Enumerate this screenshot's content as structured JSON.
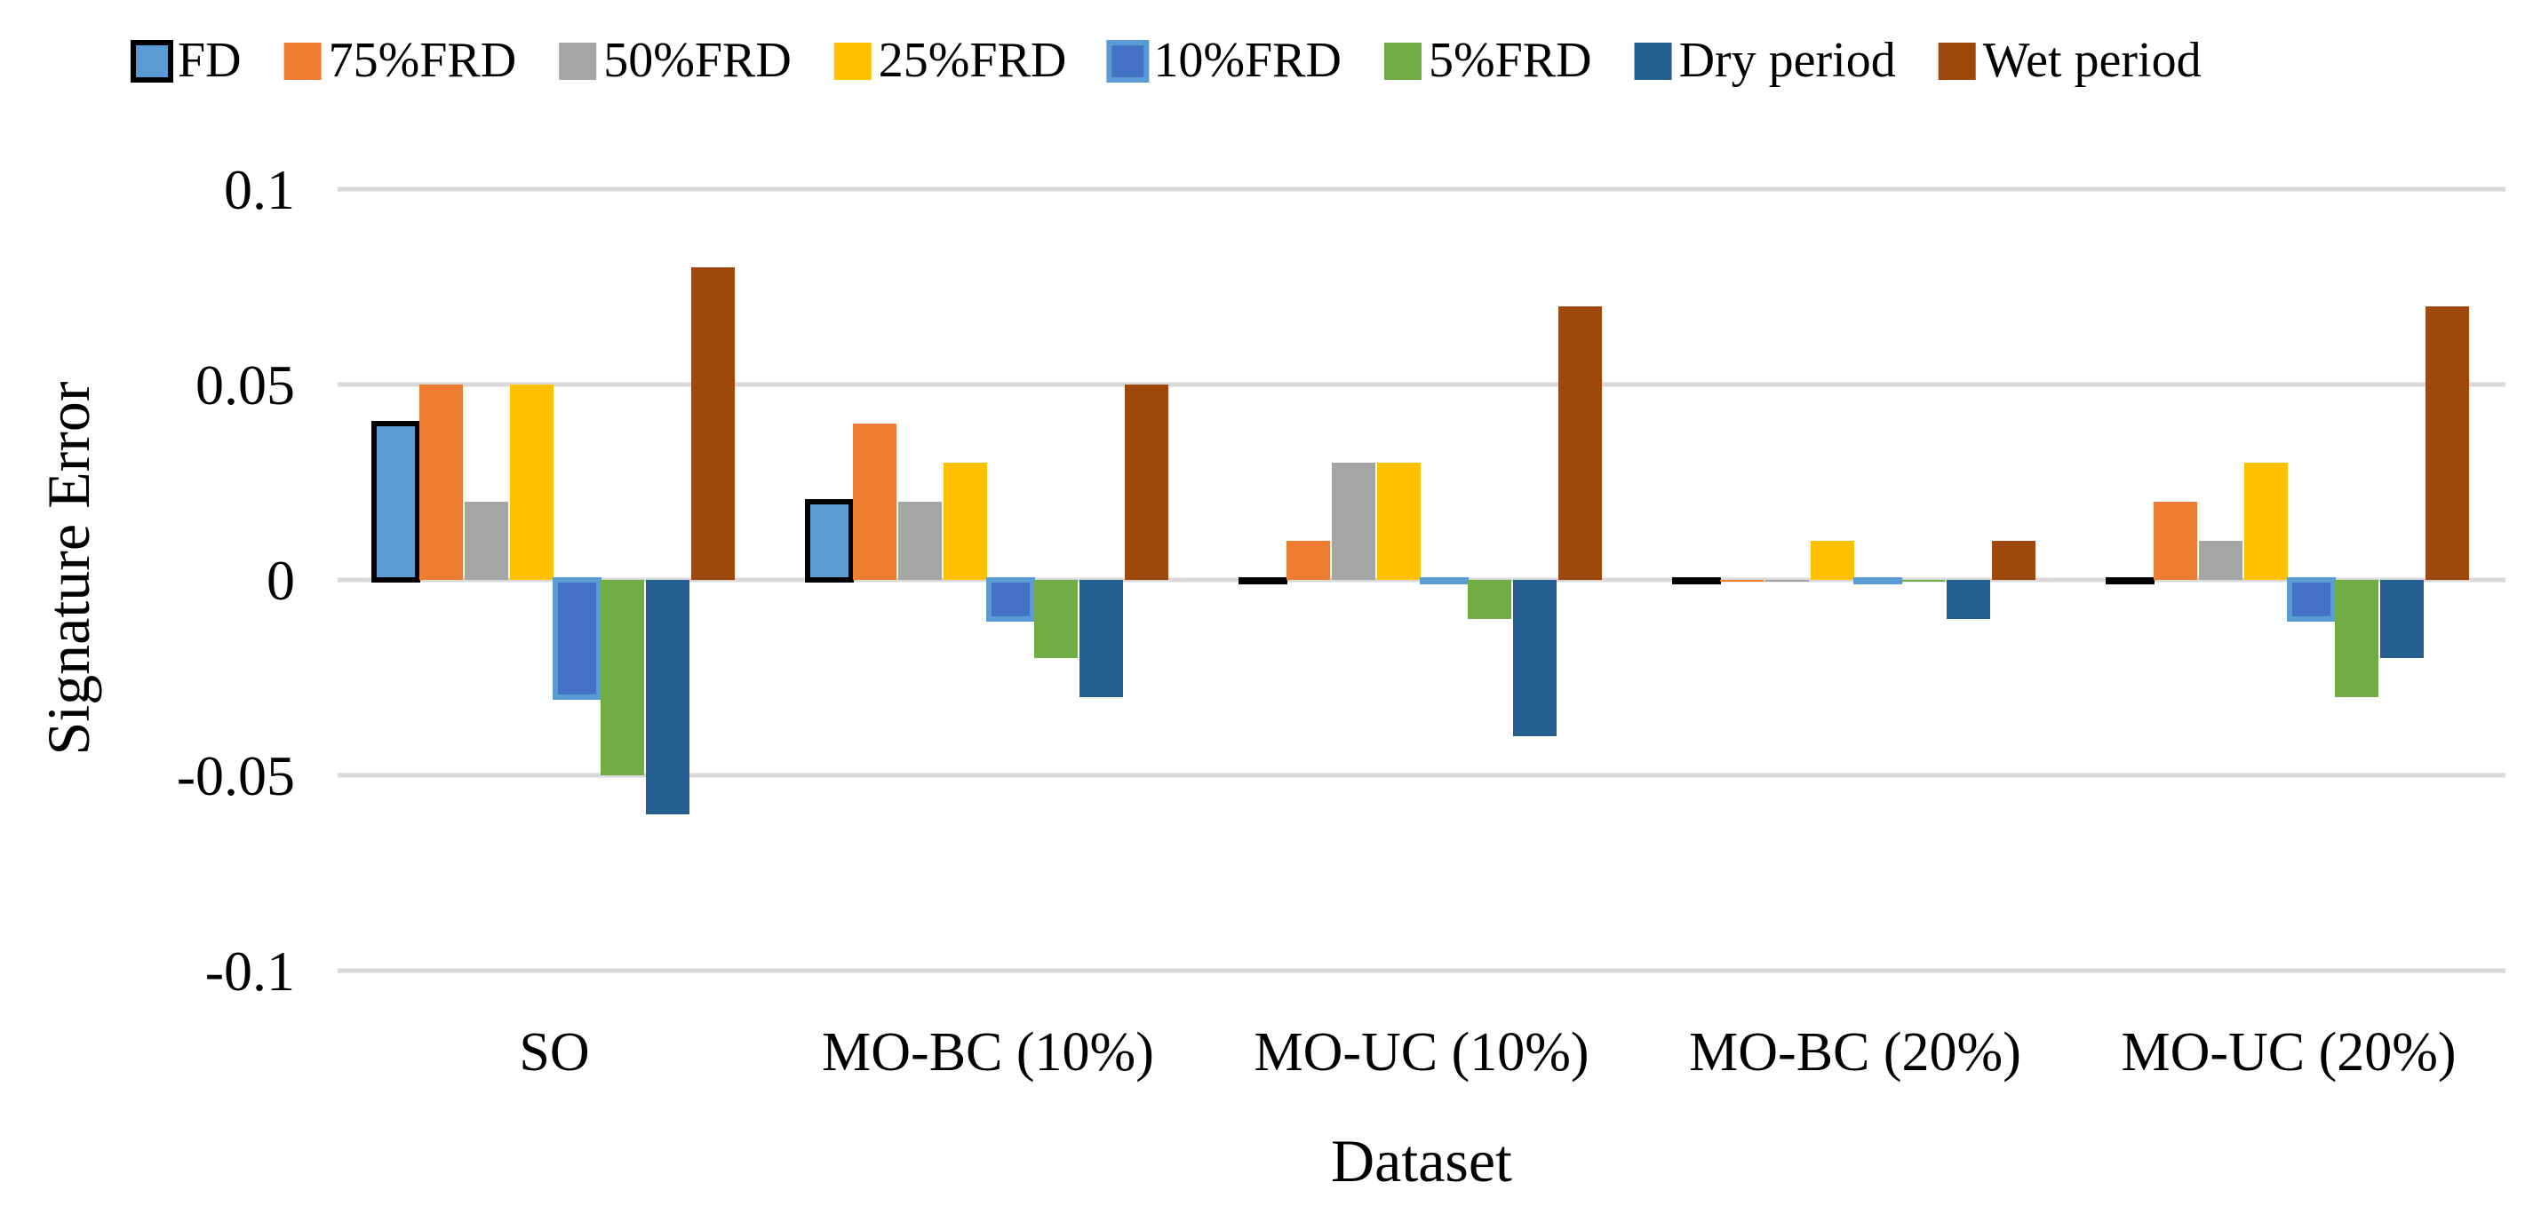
{
  "chart_data": {
    "type": "bar",
    "title": "",
    "xlabel": "Dataset",
    "ylabel": "Signature Error",
    "ylim": [
      -0.1,
      0.1
    ],
    "yticks": [
      0.1,
      0.05,
      0,
      -0.05,
      -0.1
    ],
    "ytick_labels": [
      "0.1",
      "0.05",
      "0",
      "-0.05",
      "-0.1"
    ],
    "grid": true,
    "legend_position": "top",
    "categories": [
      "SO",
      "MO-BC (10%)",
      "MO-UC (10%)",
      "MO-BC (20%)",
      "MO-UC (20%)"
    ],
    "series": [
      {
        "name": "FD",
        "color": "#5b9bd5",
        "border": "#000000",
        "values": [
          0.04,
          0.02,
          0,
          0,
          0
        ]
      },
      {
        "name": "75%FRD",
        "color": "#ed7d31",
        "values": [
          0.05,
          0.04,
          0.01,
          0,
          0.02
        ]
      },
      {
        "name": "50%FRD",
        "color": "#a5a5a5",
        "values": [
          0.02,
          0.02,
          0.03,
          0,
          0.01
        ]
      },
      {
        "name": "25%FRD",
        "color": "#ffc000",
        "values": [
          0.05,
          0.03,
          0.03,
          0.01,
          0.03
        ]
      },
      {
        "name": "10%FRD",
        "color": "#4472c4",
        "border": "#5b9bd5",
        "values": [
          -0.03,
          -0.01,
          0,
          0,
          -0.01
        ]
      },
      {
        "name": "5%FRD",
        "color": "#70ad47",
        "values": [
          -0.05,
          -0.02,
          -0.01,
          0,
          -0.03
        ]
      },
      {
        "name": "Dry period",
        "color": "#255e91",
        "values": [
          -0.06,
          -0.03,
          -0.04,
          -0.01,
          -0.02
        ]
      },
      {
        "name": "Wet period",
        "color": "#9e480e",
        "values": [
          0.08,
          0.05,
          0.07,
          0.01,
          0.07
        ]
      }
    ]
  }
}
